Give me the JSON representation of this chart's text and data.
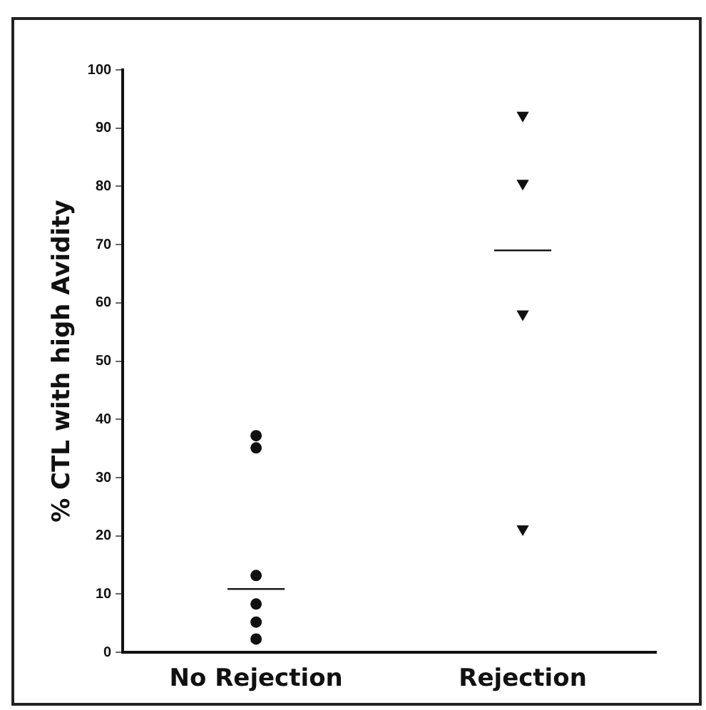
{
  "chart_data": {
    "type": "scatter",
    "ylabel": "% CTL with high Avidity",
    "categories": [
      "No Rejection",
      "Rejection"
    ],
    "series": [
      {
        "marker": "circle",
        "color": "#111111",
        "x": [
          "No Rejection",
          "No Rejection",
          "No Rejection",
          "No Rejection",
          "No Rejection",
          "No Rejection"
        ],
        "values": [
          37.2,
          35.1,
          13.2,
          8.3,
          5.2,
          2.3
        ]
      },
      {
        "marker": "triangle",
        "color": "#111111",
        "x": [
          "Rejection",
          "Rejection",
          "Rejection",
          "Rejection"
        ],
        "values": [
          92.2,
          80.5,
          58.1,
          21.2
        ]
      },
      {
        "type": "box",
        "color": "#111111",
        "boxes": [
          {
            "low": 10.9,
            "q1": 10.9,
            "median": 10.9,
            "q3": 10.9,
            "high": 10.9
          },
          {
            "low": 69,
            "q1": 69,
            "median": 69,
            "q3": 69,
            "high": 69
          }
        ]
      }
    ],
    "ylim": [
      0,
      100
    ],
    "yticks": [
      0,
      10,
      20,
      30,
      40,
      50,
      60,
      70,
      80,
      90,
      100
    ],
    "grid": false,
    "legend": false
  }
}
